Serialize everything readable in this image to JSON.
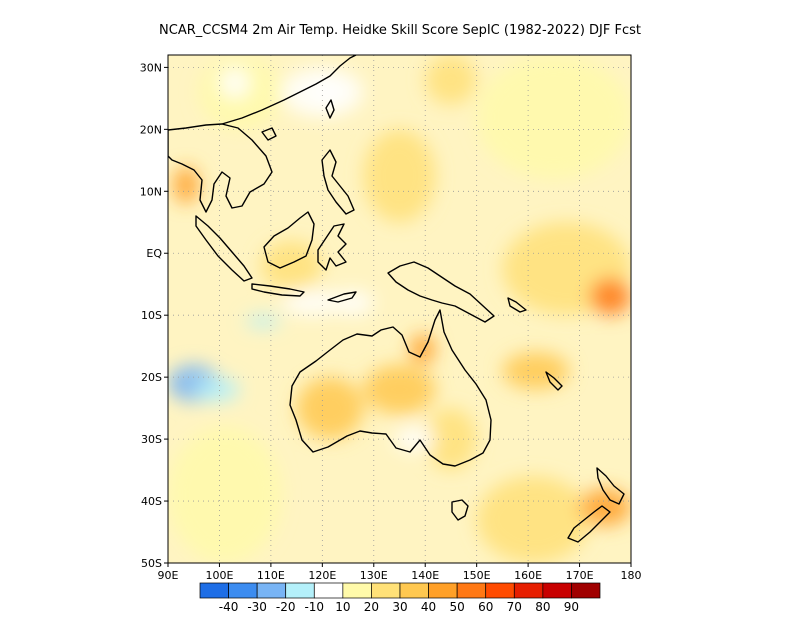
{
  "title": "NCAR_CCSM4  2m Air Temp. Heidke Skill Score SepIC (1982-2022) DJF Fcst",
  "map": {
    "lon_range": [
      90,
      180
    ],
    "lat_range": [
      -50,
      32
    ],
    "lon_ticks": [
      {
        "value": 90,
        "label": "90E"
      },
      {
        "value": 100,
        "label": "100E"
      },
      {
        "value": 110,
        "label": "110E"
      },
      {
        "value": 120,
        "label": "120E"
      },
      {
        "value": 130,
        "label": "130E"
      },
      {
        "value": 140,
        "label": "140E"
      },
      {
        "value": 150,
        "label": "150E"
      },
      {
        "value": 160,
        "label": "160E"
      },
      {
        "value": 170,
        "label": "170E"
      },
      {
        "value": 180,
        "label": "180"
      }
    ],
    "lat_ticks": [
      {
        "value": 30,
        "label": "30N"
      },
      {
        "value": 20,
        "label": "20N"
      },
      {
        "value": 10,
        "label": "10N"
      },
      {
        "value": 0,
        "label": "EQ"
      },
      {
        "value": -10,
        "label": "10S"
      },
      {
        "value": -20,
        "label": "20S"
      },
      {
        "value": -30,
        "label": "30S"
      },
      {
        "value": -40,
        "label": "40S"
      },
      {
        "value": -50,
        "label": "50S"
      }
    ],
    "grid": true
  },
  "colorbar": {
    "colors": [
      "#1e6ee6",
      "#3c8cf0",
      "#78b4f5",
      "#b4f0fa",
      "#ffffff",
      "#fffaaa",
      "#ffe178",
      "#ffc850",
      "#ffa028",
      "#ff7814",
      "#ff4b00",
      "#e61e00",
      "#c80000",
      "#a00000"
    ],
    "labels": [
      "-40",
      "-30",
      "-20",
      "-10",
      "10",
      "20",
      "30",
      "40",
      "50",
      "60",
      "70",
      "80",
      "90"
    ]
  },
  "chart_data": {
    "type": "heatmap",
    "variable": "Heidke Skill Score",
    "levels": [
      -40,
      -30,
      -20,
      -10,
      10,
      20,
      30,
      40,
      50,
      60,
      70,
      80,
      90
    ],
    "regions": [
      {
        "lon": [
          96,
          112
        ],
        "lat": [
          20,
          32
        ],
        "value": 15
      },
      {
        "lon": [
          100,
          106
        ],
        "lat": [
          25,
          30
        ],
        "value": -5
      },
      {
        "lon": [
          112,
          128
        ],
        "lat": [
          22,
          30
        ],
        "value": 5
      },
      {
        "lon": [
          118,
          124
        ],
        "lat": [
          24,
          28
        ],
        "value": -8
      },
      {
        "lon": [
          128,
          142
        ],
        "lat": [
          5,
          20
        ],
        "value": 25
      },
      {
        "lon": [
          140,
          150
        ],
        "lat": [
          24,
          32
        ],
        "value": 20
      },
      {
        "lon": [
          150,
          180
        ],
        "lat": [
          12,
          32
        ],
        "value": 12
      },
      {
        "lon": [
          155,
          180
        ],
        "lat": [
          -10,
          5
        ],
        "value": 28
      },
      {
        "lon": [
          172,
          180
        ],
        "lat": [
          -10,
          -4
        ],
        "value": 50
      },
      {
        "lon": [
          91,
          96
        ],
        "lat": [
          8,
          14
        ],
        "value": 40
      },
      {
        "lon": [
          108,
          120
        ],
        "lat": [
          -6,
          2
        ],
        "value": 22
      },
      {
        "lon": [
          112,
          124
        ],
        "lat": [
          -10,
          -6
        ],
        "value": -6
      },
      {
        "lon": [
          122,
          130
        ],
        "lat": [
          -10,
          -6
        ],
        "value": -4
      },
      {
        "lon": [
          105,
          112
        ],
        "lat": [
          -12,
          -10
        ],
        "value": -12
      },
      {
        "lon": [
          128,
          142
        ],
        "lat": [
          -26,
          -18
        ],
        "value": 35
      },
      {
        "lon": [
          137,
          142
        ],
        "lat": [
          -18,
          -13
        ],
        "value": 45
      },
      {
        "lon": [
          115,
          128
        ],
        "lat": [
          -30,
          -20
        ],
        "value": 32
      },
      {
        "lon": [
          140,
          150
        ],
        "lat": [
          -35,
          -25
        ],
        "value": 20
      },
      {
        "lon": [
          155,
          168
        ],
        "lat": [
          -22,
          -16
        ],
        "value": 30
      },
      {
        "lon": [
          90,
          100
        ],
        "lat": [
          -24,
          -18
        ],
        "value": -25
      },
      {
        "lon": [
          95,
          104
        ],
        "lat": [
          -24,
          -20
        ],
        "value": -12
      },
      {
        "lon": [
          90,
          112
        ],
        "lat": [
          -50,
          -28
        ],
        "value": 15
      },
      {
        "lon": [
          150,
          172
        ],
        "lat": [
          -50,
          -36
        ],
        "value": 25
      },
      {
        "lon": [
          170,
          180
        ],
        "lat": [
          -44,
          -38
        ],
        "value": 40
      },
      {
        "lon": [
          134,
          142
        ],
        "lat": [
          -32,
          -28
        ],
        "value": -5
      }
    ]
  }
}
